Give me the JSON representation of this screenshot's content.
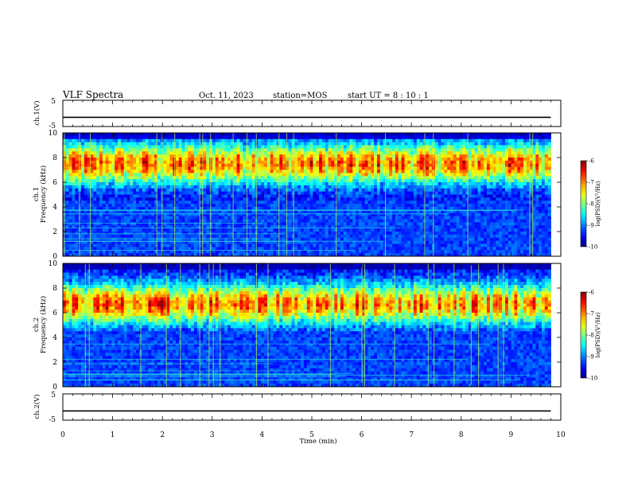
{
  "header": {
    "title": "VLF Spectra",
    "date": "Oct. 11, 2023",
    "station": "station=MOS",
    "start": "start UT =  8 : 10 : 1"
  },
  "chart_data": [
    {
      "type": "line",
      "name": "ch1-waveform",
      "ylabel": "ch.1(V)",
      "ylim": [
        -5,
        5
      ],
      "yticks": [
        "5",
        "-5"
      ],
      "x": [
        0,
        9.8
      ],
      "values": [
        -1.5,
        -1.5
      ],
      "xlim": [
        0,
        10
      ]
    },
    {
      "type": "heatmap",
      "name": "ch1-spectrogram",
      "ylabel": "ch.1\nFrequency (kHz)",
      "ylim": [
        0,
        10
      ],
      "yticks": [
        "0",
        "2",
        "4",
        "6",
        "8",
        "10"
      ],
      "xlim": [
        0,
        10
      ],
      "data_xmax": 9.8,
      "band_center_khz": 7.5,
      "colorbar": {
        "label": "log(PSD)(V²/Hz)",
        "range": [
          -10,
          -6
        ],
        "ticks": [
          "-6",
          "-7",
          "-8",
          "-9",
          "-10"
        ]
      }
    },
    {
      "type": "heatmap",
      "name": "ch2-spectrogram",
      "ylabel": "ch.2\nFrequency (kHz)",
      "ylim": [
        0,
        10
      ],
      "yticks": [
        "0",
        "2",
        "4",
        "6",
        "8",
        "10"
      ],
      "xlim": [
        0,
        10
      ],
      "data_xmax": 9.8,
      "band_center_khz": 6.7,
      "colorbar": {
        "label": "log(PSD)(V²/Hz)",
        "range": [
          -10,
          -6
        ],
        "ticks": [
          "-6",
          "-7",
          "-8",
          "-9",
          "-10"
        ]
      }
    },
    {
      "type": "line",
      "name": "ch2-waveform",
      "ylabel": "ch.2(V)",
      "ylim": [
        -5,
        5
      ],
      "yticks": [
        "5",
        "-5"
      ],
      "x": [
        0,
        9.8
      ],
      "values": [
        -1.5,
        -1.5
      ],
      "xlim": [
        0,
        10
      ]
    }
  ],
  "xaxis": {
    "label": "Time (min)",
    "ticks": [
      "0",
      "1",
      "2",
      "3",
      "4",
      "5",
      "6",
      "7",
      "8",
      "9",
      "10"
    ]
  }
}
